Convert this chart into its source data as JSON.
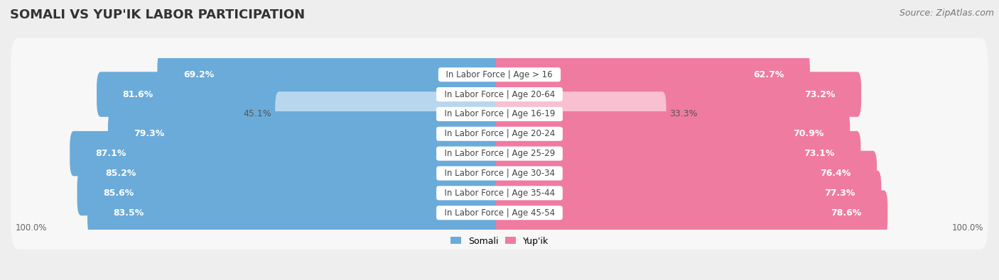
{
  "title": "SOMALI VS YUP'IK LABOR PARTICIPATION",
  "source": "Source: ZipAtlas.com",
  "categories": [
    "In Labor Force | Age > 16",
    "In Labor Force | Age 20-64",
    "In Labor Force | Age 16-19",
    "In Labor Force | Age 20-24",
    "In Labor Force | Age 25-29",
    "In Labor Force | Age 30-34",
    "In Labor Force | Age 35-44",
    "In Labor Force | Age 45-54"
  ],
  "somali_values": [
    69.2,
    81.6,
    45.1,
    79.3,
    87.1,
    85.2,
    85.6,
    83.5
  ],
  "yupik_values": [
    62.7,
    73.2,
    33.3,
    70.9,
    73.1,
    76.4,
    77.3,
    78.6
  ],
  "somali_color_full": "#6aabda",
  "somali_color_light": "#b8d7ef",
  "yupik_color_full": "#f07ba0",
  "yupik_color_light": "#f8c0d0",
  "bg_color": "#eeeeee",
  "row_bg": "#f7f7f7",
  "row_bg_alt": "#ffffff",
  "max_value": 100.0,
  "label_color_white": "#ffffff",
  "label_color_dark": "#555555",
  "center_label_color": "#444444",
  "title_fontsize": 13,
  "source_fontsize": 9,
  "bar_label_fontsize": 9,
  "category_fontsize": 8.5,
  "legend_fontsize": 9,
  "axis_label_fontsize": 8.5
}
